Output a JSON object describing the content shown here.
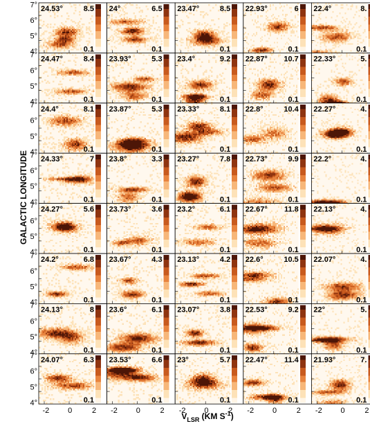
{
  "chart_data": {
    "type": "heatmap",
    "layout": {
      "rows": 8,
      "cols": 5
    },
    "xlabel": {
      "main": "V",
      "sub": "LSR",
      "rest": " (KM S",
      "sup": "-1",
      "end": ")"
    },
    "ylabel": "GALACTIC LONGITUDE",
    "xticks": [
      "-2",
      "0",
      "2"
    ],
    "xlim": [
      -2.6,
      2.0
    ],
    "ylim": [
      3.9,
      7.1
    ],
    "yticks": [
      "4°",
      "5°",
      "6°",
      "7°"
    ],
    "panels": [
      {
        "title": "24.53°",
        "max": "8.5",
        "min": "0.1"
      },
      {
        "title": "24°",
        "max": "6.5",
        "min": "0.1"
      },
      {
        "title": "23.47°",
        "max": "8.5",
        "min": "0.1"
      },
      {
        "title": "22.93°",
        "max": "6",
        "min": "0.1"
      },
      {
        "title": "22.4°",
        "max": "8.",
        "min": "0.1"
      },
      {
        "title": "24.47°",
        "max": "8.4",
        "min": "0.1"
      },
      {
        "title": "23.93°",
        "max": "5.3",
        "min": "0.1"
      },
      {
        "title": "23.4°",
        "max": "9.2",
        "min": "0.1"
      },
      {
        "title": "22.87°",
        "max": "10.7",
        "min": "0.1"
      },
      {
        "title": "22.33°",
        "max": "5.",
        "min": "0.1"
      },
      {
        "title": "24.4°",
        "max": "8.1",
        "min": "0.1"
      },
      {
        "title": "23.87°",
        "max": "5.3",
        "min": "0.1"
      },
      {
        "title": "23.33°",
        "max": "8.1",
        "min": "0.1"
      },
      {
        "title": "22.8°",
        "max": "10.4",
        "min": "0.1"
      },
      {
        "title": "22.27°",
        "max": "4.",
        "min": "0.1"
      },
      {
        "title": "24.33°",
        "max": "7",
        "min": "0.1"
      },
      {
        "title": "23.8°",
        "max": "3.3",
        "min": "0.1"
      },
      {
        "title": "23.27°",
        "max": "7.8",
        "min": "0.1"
      },
      {
        "title": "22.73°",
        "max": "9.9",
        "min": "0.1"
      },
      {
        "title": "22.2°",
        "max": "4.",
        "min": "0.1"
      },
      {
        "title": "24.27°",
        "max": "5.6",
        "min": "0.1"
      },
      {
        "title": "23.73°",
        "max": "3.6",
        "min": "0.1"
      },
      {
        "title": "23.2°",
        "max": "6.1",
        "min": "0.1"
      },
      {
        "title": "22.67°",
        "max": "11.8",
        "min": "0.1"
      },
      {
        "title": "22.13°",
        "max": "4.",
        "min": "0.1"
      },
      {
        "title": "24.2°",
        "max": "6.8",
        "min": "0.1"
      },
      {
        "title": "23.67°",
        "max": "4.3",
        "min": "0.1"
      },
      {
        "title": "23.13°",
        "max": "4.2",
        "min": "0.1"
      },
      {
        "title": "22.6°",
        "max": "10.5",
        "min": "0.1"
      },
      {
        "title": "22.07°",
        "max": "4.",
        "min": "0.1"
      },
      {
        "title": "24.13°",
        "max": "8",
        "min": "0.1"
      },
      {
        "title": "23.6°",
        "max": "6.1",
        "min": "0.1"
      },
      {
        "title": "23.07°",
        "max": "3.8",
        "min": "0.1"
      },
      {
        "title": "22.53°",
        "max": "9.2",
        "min": "0.1"
      },
      {
        "title": "22°",
        "max": "5.",
        "min": "0.1"
      },
      {
        "title": "24.07°",
        "max": "6.3",
        "min": "0.1"
      },
      {
        "title": "23.53°",
        "max": "6.6",
        "min": "0.1"
      },
      {
        "title": "23°",
        "max": "5.7",
        "min": "0.1"
      },
      {
        "title": "22.47°",
        "max": "11.4",
        "min": "0.1"
      },
      {
        "title": "21.93°",
        "max": "7.",
        "min": "0.1"
      }
    ],
    "colormap": [
      "#fff5e6",
      "#fde2b8",
      "#f7b77a",
      "#e8843f",
      "#c85a1e",
      "#8f3410",
      "#4d1607"
    ]
  }
}
